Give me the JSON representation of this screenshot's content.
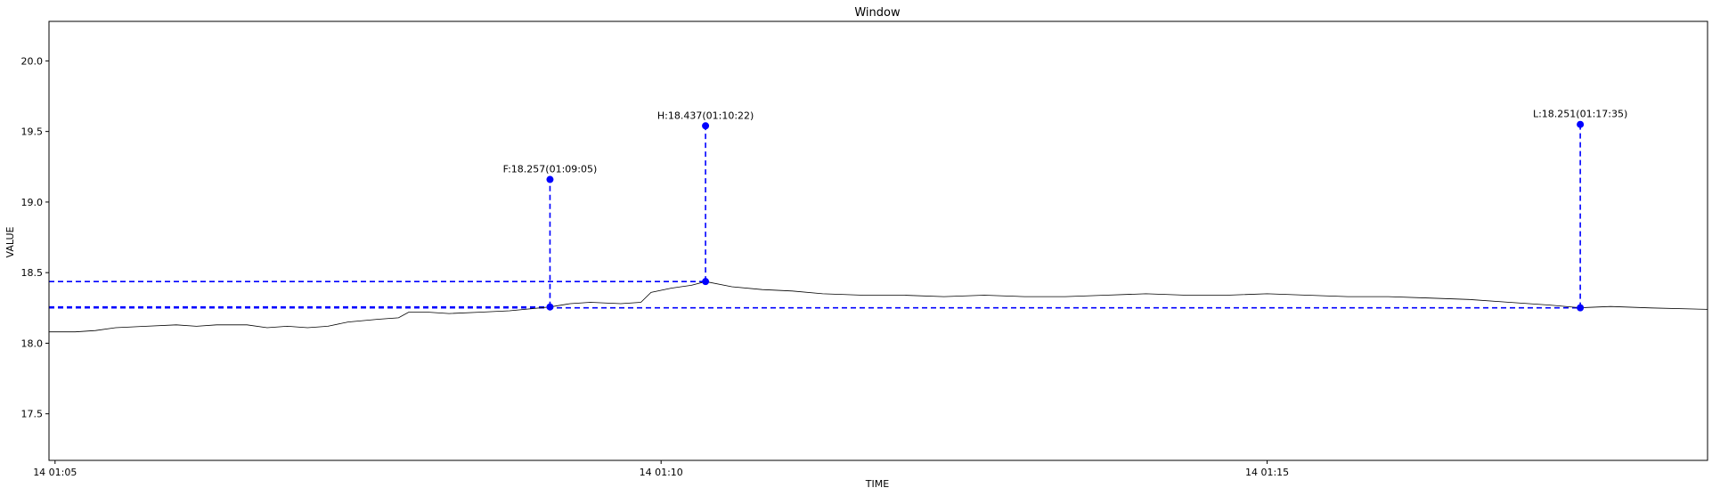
{
  "chart_data": {
    "type": "line",
    "title": "Window",
    "xlabel": "TIME",
    "ylabel": "VALUE",
    "xlim": [
      "01:04:57",
      "01:18:38"
    ],
    "ylim": [
      17.17,
      20.28
    ],
    "x_ticks": [
      {
        "time": "01:05:00",
        "label": "14 01:05"
      },
      {
        "time": "01:10:00",
        "label": "14 01:10"
      },
      {
        "time": "01:15:00",
        "label": "14 01:15"
      }
    ],
    "y_ticks": [
      {
        "value": 17.5,
        "label": "17.5"
      },
      {
        "value": 18.0,
        "label": "18.0"
      },
      {
        "value": 18.5,
        "label": "18.5"
      },
      {
        "value": 19.0,
        "label": "19.0"
      },
      {
        "value": 19.5,
        "label": "19.5"
      },
      {
        "value": 20.0,
        "label": "20.0"
      }
    ],
    "grid": false,
    "series": [
      {
        "color": "#000000",
        "points": [
          [
            "01:04:57",
            18.08
          ],
          [
            "01:05:10",
            18.08
          ],
          [
            "01:05:20",
            18.09
          ],
          [
            "01:05:30",
            18.11
          ],
          [
            "01:05:45",
            18.12
          ],
          [
            "01:06:00",
            18.13
          ],
          [
            "01:06:10",
            18.12
          ],
          [
            "01:06:20",
            18.13
          ],
          [
            "01:06:35",
            18.13
          ],
          [
            "01:06:45",
            18.11
          ],
          [
            "01:06:55",
            18.12
          ],
          [
            "01:07:05",
            18.11
          ],
          [
            "01:07:15",
            18.12
          ],
          [
            "01:07:25",
            18.15
          ],
          [
            "01:07:40",
            18.17
          ],
          [
            "01:07:50",
            18.18
          ],
          [
            "01:07:55",
            18.22
          ],
          [
            "01:08:05",
            18.22
          ],
          [
            "01:08:15",
            18.21
          ],
          [
            "01:08:30",
            18.22
          ],
          [
            "01:08:45",
            18.23
          ],
          [
            "01:09:05",
            18.257
          ],
          [
            "01:09:15",
            18.28
          ],
          [
            "01:09:25",
            18.29
          ],
          [
            "01:09:40",
            18.28
          ],
          [
            "01:09:50",
            18.29
          ],
          [
            "01:09:55",
            18.36
          ],
          [
            "01:10:05",
            18.39
          ],
          [
            "01:10:15",
            18.41
          ],
          [
            "01:10:22",
            18.437
          ],
          [
            "01:10:35",
            18.4
          ],
          [
            "01:10:50",
            18.38
          ],
          [
            "01:11:05",
            18.37
          ],
          [
            "01:11:20",
            18.35
          ],
          [
            "01:11:40",
            18.34
          ],
          [
            "01:12:00",
            18.34
          ],
          [
            "01:12:20",
            18.33
          ],
          [
            "01:12:40",
            18.34
          ],
          [
            "01:13:00",
            18.33
          ],
          [
            "01:13:20",
            18.33
          ],
          [
            "01:13:40",
            18.34
          ],
          [
            "01:14:00",
            18.35
          ],
          [
            "01:14:20",
            18.34
          ],
          [
            "01:14:40",
            18.34
          ],
          [
            "01:15:00",
            18.35
          ],
          [
            "01:15:20",
            18.34
          ],
          [
            "01:15:40",
            18.33
          ],
          [
            "01:16:00",
            18.33
          ],
          [
            "01:16:20",
            18.32
          ],
          [
            "01:16:40",
            18.31
          ],
          [
            "01:17:00",
            18.29
          ],
          [
            "01:17:20",
            18.27
          ],
          [
            "01:17:35",
            18.251
          ],
          [
            "01:17:50",
            18.26
          ],
          [
            "01:18:10",
            18.25
          ],
          [
            "01:18:38",
            18.24
          ]
        ]
      }
    ],
    "markers": [
      {
        "label": "F:18.257(01:09:05)",
        "time": "01:09:05",
        "value": 18.257,
        "label_value": 19.16,
        "color": "#0000ff"
      },
      {
        "label": "H:18.437(01:10:22)",
        "time": "01:10:22",
        "value": 18.437,
        "label_value": 19.54,
        "color": "#0000ff"
      },
      {
        "label": "L:18.251(01:17:35)",
        "time": "01:17:35",
        "value": 18.251,
        "label_value": 19.55,
        "color": "#0000ff"
      }
    ],
    "hlines": [
      {
        "value": 18.437,
        "end_time": "01:10:22",
        "color": "#0000ff"
      },
      {
        "value": 18.257,
        "end_time": "01:09:05",
        "color": "#0000ff"
      },
      {
        "value": 18.251,
        "end_time": "01:17:35",
        "color": "#0000ff"
      }
    ]
  }
}
